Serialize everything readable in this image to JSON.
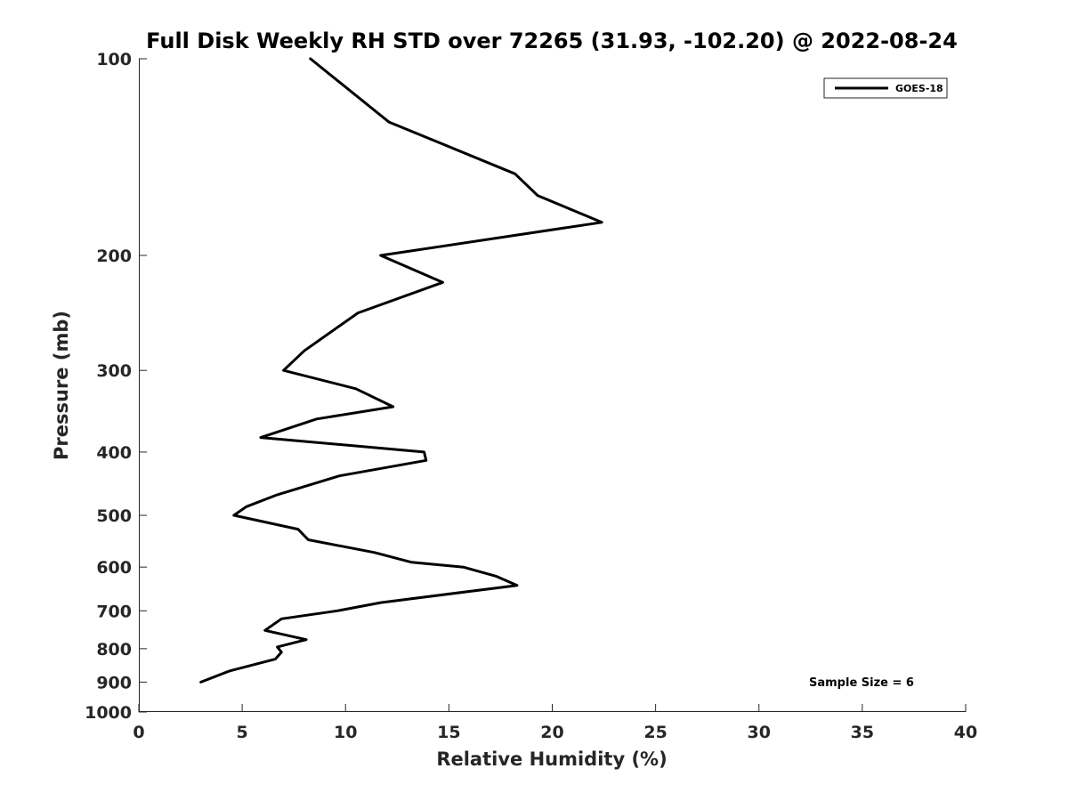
{
  "chart_data": {
    "type": "line",
    "title": "Full Disk Weekly RH STD over 72265 (31.93, -102.20) @ 2022-08-24",
    "xlabel": "Relative Humidity (%)",
    "ylabel": "Pressure (mb)",
    "xlim": [
      0,
      40
    ],
    "ylim": [
      1000,
      100
    ],
    "y_scale": "log",
    "y_reversed": true,
    "grid": false,
    "x_ticks": [
      0,
      5,
      10,
      15,
      20,
      25,
      30,
      35,
      40
    ],
    "x_tick_labels": [
      "0",
      "5",
      "10",
      "15",
      "20",
      "25",
      "30",
      "35",
      "40"
    ],
    "y_ticks": [
      100,
      200,
      300,
      400,
      500,
      600,
      700,
      800,
      900,
      1000
    ],
    "y_tick_labels": [
      "100",
      "200",
      "300",
      "400",
      "500",
      "600",
      "700",
      "800",
      "900",
      "1000"
    ],
    "legend": {
      "position": "top-right",
      "entries": [
        "GOES-18"
      ]
    },
    "annotation": "Sample Size = 6",
    "series": [
      {
        "name": "GOES-18",
        "color": "#000000",
        "points": [
          {
            "x": 8.3,
            "y": 100
          },
          {
            "x": 12.1,
            "y": 125
          },
          {
            "x": 18.2,
            "y": 150
          },
          {
            "x": 19.3,
            "y": 162
          },
          {
            "x": 22.4,
            "y": 178
          },
          {
            "x": 11.7,
            "y": 200
          },
          {
            "x": 14.7,
            "y": 220
          },
          {
            "x": 10.6,
            "y": 245
          },
          {
            "x": 8.0,
            "y": 280
          },
          {
            "x": 7.0,
            "y": 300
          },
          {
            "x": 10.5,
            "y": 320
          },
          {
            "x": 12.3,
            "y": 341
          },
          {
            "x": 8.6,
            "y": 356
          },
          {
            "x": 5.9,
            "y": 380
          },
          {
            "x": 13.8,
            "y": 400
          },
          {
            "x": 13.9,
            "y": 412
          },
          {
            "x": 9.7,
            "y": 435
          },
          {
            "x": 6.7,
            "y": 465
          },
          {
            "x": 5.2,
            "y": 485
          },
          {
            "x": 4.6,
            "y": 500
          },
          {
            "x": 7.7,
            "y": 525
          },
          {
            "x": 8.2,
            "y": 545
          },
          {
            "x": 11.4,
            "y": 570
          },
          {
            "x": 13.2,
            "y": 590
          },
          {
            "x": 15.7,
            "y": 600
          },
          {
            "x": 17.3,
            "y": 620
          },
          {
            "x": 18.3,
            "y": 640
          },
          {
            "x": 11.7,
            "y": 680
          },
          {
            "x": 9.6,
            "y": 700
          },
          {
            "x": 6.9,
            "y": 720
          },
          {
            "x": 6.1,
            "y": 750
          },
          {
            "x": 8.1,
            "y": 775
          },
          {
            "x": 6.7,
            "y": 795
          },
          {
            "x": 6.9,
            "y": 810
          },
          {
            "x": 6.6,
            "y": 830
          },
          {
            "x": 4.4,
            "y": 865
          },
          {
            "x": 3.0,
            "y": 900
          }
        ]
      }
    ]
  }
}
